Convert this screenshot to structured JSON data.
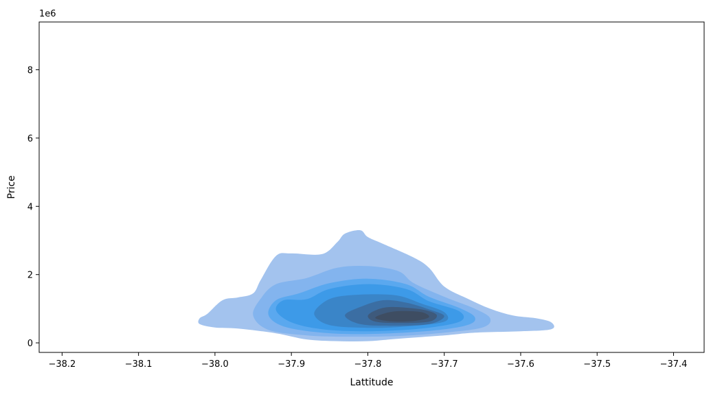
{
  "chart_data": {
    "type": "kde-contour",
    "title": "",
    "xlabel": "Lattitude",
    "ylabel": "Price",
    "y_offset_label": "1e6",
    "xlim": [
      -38.23,
      -37.36
    ],
    "ylim": [
      -0.28,
      9.4
    ],
    "x_ticks": [
      -38.2,
      -38.1,
      -38.0,
      -37.9,
      -37.8,
      -37.7,
      -37.6,
      -37.5,
      -37.4
    ],
    "x_tick_labels": [
      "−38.2",
      "−38.1",
      "−38.0",
      "−37.9",
      "−37.8",
      "−37.7",
      "−37.6",
      "−37.5",
      "−37.4"
    ],
    "y_ticks": [
      0,
      2,
      4,
      6,
      8
    ],
    "y_tick_labels": [
      "0",
      "2",
      "4",
      "6",
      "8"
    ],
    "grid": false,
    "legend": "none",
    "colors": [
      "#a3c3ee",
      "#83b4ee",
      "#5aa8ef",
      "#3d9ae8",
      "#3a85c8",
      "#3b6ea3",
      "#3e5a7c",
      "#3e4d62"
    ],
    "levels": [
      {
        "level": 1,
        "points": [
          [
            -38.02,
            0.72
          ],
          [
            -38.01,
            0.85
          ],
          [
            -37.99,
            1.25
          ],
          [
            -37.97,
            1.33
          ],
          [
            -37.95,
            1.45
          ],
          [
            -37.94,
            1.85
          ],
          [
            -37.92,
            2.55
          ],
          [
            -37.9,
            2.62
          ],
          [
            -37.86,
            2.6
          ],
          [
            -37.84,
            2.95
          ],
          [
            -37.83,
            3.2
          ],
          [
            -37.81,
            3.3
          ],
          [
            -37.8,
            3.1
          ],
          [
            -37.78,
            2.9
          ],
          [
            -37.74,
            2.5
          ],
          [
            -37.72,
            2.2
          ],
          [
            -37.7,
            1.65
          ],
          [
            -37.67,
            1.3
          ],
          [
            -37.64,
            1.0
          ],
          [
            -37.61,
            0.8
          ],
          [
            -37.58,
            0.72
          ],
          [
            -37.56,
            0.6
          ],
          [
            -37.56,
            0.4
          ],
          [
            -37.6,
            0.34
          ],
          [
            -37.66,
            0.3
          ],
          [
            -37.7,
            0.22
          ],
          [
            -37.76,
            0.12
          ],
          [
            -37.8,
            0.05
          ],
          [
            -37.84,
            0.05
          ],
          [
            -37.88,
            0.1
          ],
          [
            -37.92,
            0.28
          ],
          [
            -37.97,
            0.42
          ],
          [
            -38.0,
            0.45
          ],
          [
            -38.02,
            0.55
          ]
        ]
      },
      {
        "level": 2,
        "points": [
          [
            -37.95,
            0.8
          ],
          [
            -37.94,
            1.3
          ],
          [
            -37.92,
            1.72
          ],
          [
            -37.88,
            1.9
          ],
          [
            -37.84,
            2.2
          ],
          [
            -37.8,
            2.25
          ],
          [
            -37.76,
            2.1
          ],
          [
            -37.74,
            1.75
          ],
          [
            -37.7,
            1.35
          ],
          [
            -37.66,
            1.0
          ],
          [
            -37.64,
            0.72
          ],
          [
            -37.65,
            0.45
          ],
          [
            -37.7,
            0.3
          ],
          [
            -37.76,
            0.2
          ],
          [
            -37.83,
            0.18
          ],
          [
            -37.88,
            0.22
          ],
          [
            -37.93,
            0.38
          ]
        ]
      },
      {
        "level": 3,
        "points": [
          [
            -37.93,
            0.82
          ],
          [
            -37.92,
            1.25
          ],
          [
            -37.89,
            1.45
          ],
          [
            -37.85,
            1.75
          ],
          [
            -37.8,
            1.88
          ],
          [
            -37.75,
            1.72
          ],
          [
            -37.72,
            1.35
          ],
          [
            -37.68,
            1.02
          ],
          [
            -37.66,
            0.75
          ],
          [
            -37.67,
            0.52
          ],
          [
            -37.72,
            0.35
          ],
          [
            -37.8,
            0.26
          ],
          [
            -37.86,
            0.3
          ],
          [
            -37.91,
            0.48
          ]
        ]
      },
      {
        "level": 4,
        "points": [
          [
            -37.92,
            0.95
          ],
          [
            -37.91,
            1.25
          ],
          [
            -37.88,
            1.28
          ],
          [
            -37.85,
            1.58
          ],
          [
            -37.8,
            1.72
          ],
          [
            -37.75,
            1.58
          ],
          [
            -37.72,
            1.22
          ],
          [
            -37.68,
            0.92
          ],
          [
            -37.68,
            0.62
          ],
          [
            -37.73,
            0.42
          ],
          [
            -37.8,
            0.34
          ],
          [
            -37.86,
            0.4
          ],
          [
            -37.9,
            0.6
          ]
        ]
      },
      {
        "level": 5,
        "points": [
          [
            -37.87,
            0.82
          ],
          [
            -37.86,
            1.15
          ],
          [
            -37.84,
            1.35
          ],
          [
            -37.8,
            1.42
          ],
          [
            -37.76,
            1.38
          ],
          [
            -37.73,
            1.15
          ],
          [
            -37.7,
            0.9
          ],
          [
            -37.7,
            0.62
          ],
          [
            -37.75,
            0.48
          ],
          [
            -37.8,
            0.44
          ],
          [
            -37.85,
            0.52
          ]
        ]
      },
      {
        "level": 6,
        "points": [
          [
            -37.83,
            0.8
          ],
          [
            -37.81,
            1.05
          ],
          [
            -37.78,
            1.25
          ],
          [
            -37.75,
            1.18
          ],
          [
            -37.72,
            0.98
          ],
          [
            -37.7,
            0.78
          ],
          [
            -37.72,
            0.55
          ],
          [
            -37.77,
            0.5
          ],
          [
            -37.81,
            0.55
          ]
        ]
      },
      {
        "level": 7,
        "points": [
          [
            -37.8,
            0.78
          ],
          [
            -37.79,
            0.95
          ],
          [
            -37.77,
            1.05
          ],
          [
            -37.73,
            0.98
          ],
          [
            -37.71,
            0.82
          ],
          [
            -37.72,
            0.62
          ],
          [
            -37.76,
            0.58
          ],
          [
            -37.79,
            0.62
          ]
        ]
      },
      {
        "level": 8,
        "points": [
          [
            -37.79,
            0.72
          ],
          [
            -37.78,
            0.85
          ],
          [
            -37.76,
            0.93
          ],
          [
            -37.73,
            0.9
          ],
          [
            -37.72,
            0.75
          ],
          [
            -37.74,
            0.64
          ],
          [
            -37.77,
            0.63
          ]
        ]
      }
    ]
  }
}
